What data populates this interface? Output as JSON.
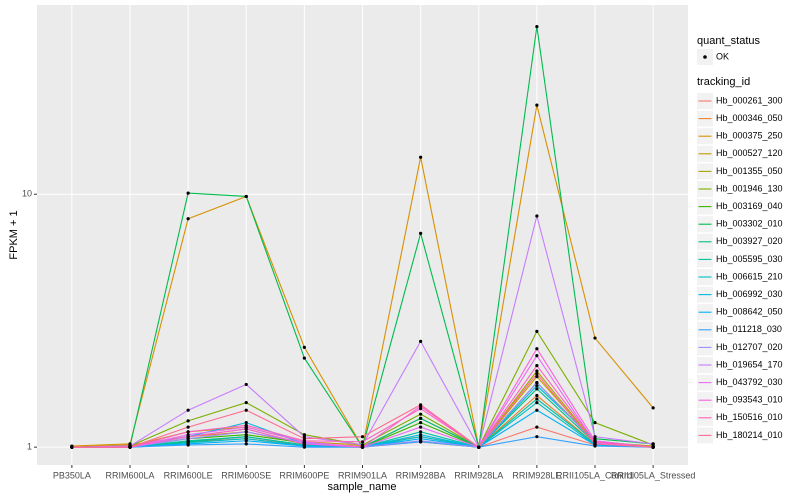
{
  "chart_data": {
    "type": "line",
    "x_label": "sample_name",
    "y_label": "FPKM + 1",
    "log_y": true,
    "grid": true,
    "categories": [
      "PB350LA",
      "RRIM600LA",
      "RRIM600LE",
      "RRIM600SE",
      "RRIM600PE",
      "RRIM901LA",
      "RRIM928BA",
      "RRIM928LA",
      "RRIM928LE",
      "RRII105LA_Control",
      "RRII105LA_Stressed"
    ],
    "ylim": [
      0.85,
      56
    ],
    "yticks": [
      1,
      10
    ],
    "point_legend_title": "quant_status",
    "point_legend_label": "OK",
    "point_color": "#000000",
    "legend_title": "tracking_id",
    "series": [
      {
        "name": "Hb_000261_300",
        "color": "#F8766D",
        "values": [
          1,
          1.01,
          1.05,
          1.08,
          1.02,
          1,
          1.05,
          1,
          1.2,
          1.02,
          1
        ]
      },
      {
        "name": "Hb_000346_050",
        "color": "#EA8331",
        "values": [
          1,
          1.02,
          1.1,
          1.15,
          1.03,
          1.01,
          1.1,
          1,
          1.6,
          1.03,
          1
        ]
      },
      {
        "name": "Hb_000375_250",
        "color": "#D89000",
        "values": [
          1.01,
          1.03,
          8,
          9.8,
          2.48,
          1,
          14,
          1,
          22.5,
          2.7,
          1.43
        ]
      },
      {
        "name": "Hb_000527_120",
        "color": "#C09B00",
        "values": [
          1,
          1.01,
          1.15,
          1.2,
          1.05,
          1.02,
          1.05,
          1,
          1.9,
          1.05,
          1.01
        ]
      },
      {
        "name": "Hb_001355_050",
        "color": "#A3A500",
        "values": [
          1,
          1,
          1.1,
          1.18,
          1.03,
          1,
          1.3,
          1,
          2.0,
          1.04,
          1
        ]
      },
      {
        "name": "Hb_001946_130",
        "color": "#7CAE00",
        "values": [
          1,
          1.01,
          1.27,
          1.5,
          1.12,
          1.02,
          1.35,
          1,
          2.87,
          1.25,
          1.02
        ]
      },
      {
        "name": "Hb_003169_040",
        "color": "#39B600",
        "values": [
          1,
          1,
          1.08,
          1.12,
          1.04,
          1,
          1.25,
          1,
          1.8,
          1.05,
          1
        ]
      },
      {
        "name": "Hb_003302_010",
        "color": "#00BB4E",
        "values": [
          1,
          1.01,
          10.1,
          9.8,
          2.25,
          1,
          7,
          1,
          46,
          1.08,
          1.03
        ]
      },
      {
        "name": "Hb_003927_020",
        "color": "#00BF7D",
        "values": [
          1,
          1,
          1.05,
          1.1,
          1.02,
          1,
          1.3,
          1,
          1.7,
          1.04,
          1
        ]
      },
      {
        "name": "Hb_005595_030",
        "color": "#00C1A3",
        "values": [
          1,
          1,
          1.06,
          1.1,
          1.02,
          1,
          1.15,
          1,
          1.55,
          1.03,
          1
        ]
      },
      {
        "name": "Hb_006615_210",
        "color": "#00BFC4",
        "values": [
          1,
          1,
          1.04,
          1.08,
          1.01,
          1,
          1.1,
          1,
          1.5,
          1.02,
          1
        ]
      },
      {
        "name": "Hb_006992_030",
        "color": "#00BAE0",
        "values": [
          1,
          1,
          1.1,
          1.25,
          1.03,
          1,
          1.12,
          1,
          1.75,
          1.06,
          1
        ]
      },
      {
        "name": "Hb_008642_050",
        "color": "#00B0F6",
        "values": [
          1,
          1,
          1.03,
          1.06,
          1.01,
          1,
          1.08,
          1,
          1.4,
          1.02,
          1
        ]
      },
      {
        "name": "Hb_011218_030",
        "color": "#35A2FF",
        "values": [
          1,
          1,
          1.02,
          1.03,
          1,
          1,
          1.05,
          1,
          1.1,
          1.01,
          1
        ]
      },
      {
        "name": "Hb_012707_020",
        "color": "#9590FF",
        "values": [
          1,
          1,
          1.08,
          1.15,
          1.04,
          1,
          1.06,
          1,
          1.8,
          1.04,
          1
        ]
      },
      {
        "name": "Hb_019654_170",
        "color": "#C77CFF",
        "values": [
          1,
          1.01,
          1.4,
          1.77,
          1.1,
          1.02,
          2.62,
          1,
          8.2,
          1.1,
          1.03
        ]
      },
      {
        "name": "Hb_043792_030",
        "color": "#E76BF3",
        "values": [
          1,
          1,
          1.12,
          1.2,
          1.05,
          1,
          1.2,
          1,
          2.3,
          1.04,
          1
        ]
      },
      {
        "name": "Hb_093543_010",
        "color": "#FA62DB",
        "values": [
          1,
          1,
          1.1,
          1.18,
          1.03,
          1,
          1.45,
          1,
          2.45,
          1.06,
          1
        ]
      },
      {
        "name": "Hb_150516_010",
        "color": "#FF62BC",
        "values": [
          1,
          1,
          1.15,
          1.22,
          1.06,
          1.05,
          1.42,
          1,
          2.1,
          1.05,
          1
        ]
      },
      {
        "name": "Hb_180214_010",
        "color": "#FF6C91",
        "values": [
          1,
          1,
          1.2,
          1.4,
          1.08,
          1.1,
          1.47,
          1,
          1.95,
          1.03,
          1
        ]
      }
    ]
  }
}
